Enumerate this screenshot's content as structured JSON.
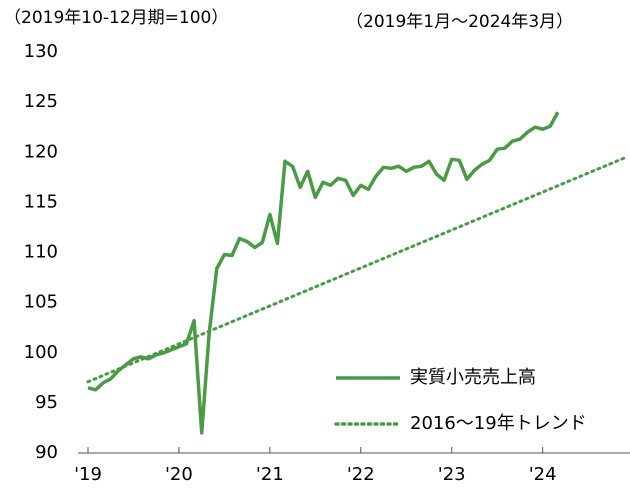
{
  "chart_data": {
    "type": "line",
    "subtitle_left": "（2019年10-12月期=100）",
    "subtitle_right": "（2019年1月～2024年3月）",
    "series": [
      {
        "name": "実質小売売上高",
        "color": "#4a9a46",
        "style": "solid",
        "x": [
          0,
          1,
          2,
          3,
          4,
          5,
          6,
          7,
          8,
          9,
          10,
          11,
          12,
          13,
          14,
          15,
          16,
          17,
          18,
          19,
          20,
          21,
          22,
          23,
          24,
          25,
          26,
          27,
          28,
          29,
          30,
          31,
          32,
          33,
          34,
          35,
          36,
          37,
          38,
          39,
          40,
          41,
          42,
          43,
          44,
          45,
          46,
          47,
          48,
          49,
          50,
          51,
          52,
          53,
          54,
          55,
          56,
          57,
          58,
          59,
          60,
          61,
          62
        ],
        "values": [
          96.5,
          96.3,
          97.0,
          97.4,
          98.2,
          98.8,
          99.4,
          99.6,
          99.4,
          99.8,
          100.0,
          100.3,
          100.6,
          100.9,
          103.2,
          92.0,
          102.0,
          108.4,
          109.8,
          109.7,
          111.4,
          111.1,
          110.5,
          111.0,
          113.8,
          110.9,
          119.1,
          118.6,
          116.5,
          118.1,
          115.5,
          117.0,
          116.7,
          117.4,
          117.2,
          115.7,
          116.7,
          116.3,
          117.6,
          118.5,
          118.4,
          118.6,
          118.1,
          118.5,
          118.6,
          119.1,
          117.8,
          117.2,
          119.3,
          119.2,
          117.3,
          118.2,
          118.8,
          119.2,
          120.3,
          120.4,
          121.1,
          121.3,
          122.0,
          122.5,
          122.3,
          122.6,
          124.0
        ]
      },
      {
        "name": "2016～19年トレンド",
        "color": "#4a9a46",
        "style": "dotted",
        "x": [
          0,
          71
        ],
        "values": [
          97.1,
          119.5
        ]
      }
    ],
    "xlim": [
      0,
      71
    ],
    "xticks": [
      {
        "value": 0,
        "label": "'19"
      },
      {
        "value": 12,
        "label": "'20"
      },
      {
        "value": 24,
        "label": "'21"
      },
      {
        "value": 36,
        "label": "'22"
      },
      {
        "value": 48,
        "label": "'23"
      },
      {
        "value": 60,
        "label": "'24"
      }
    ],
    "ylim": [
      90,
      130
    ],
    "yticks": [
      90,
      95,
      100,
      105,
      110,
      115,
      120,
      125,
      130
    ],
    "grid": false,
    "legend": "lower right"
  }
}
